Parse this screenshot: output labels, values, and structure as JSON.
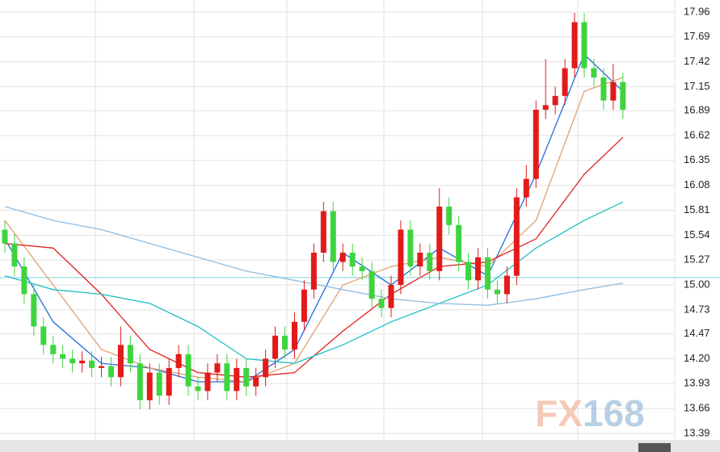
{
  "chart_data": {
    "type": "candlestick",
    "ylim": [
      13.32,
      18.09
    ],
    "yticks": [
      17.96,
      17.69,
      17.42,
      17.15,
      16.89,
      16.62,
      16.35,
      16.08,
      15.81,
      15.54,
      15.27,
      {
        "value": 15,
        "label": "15.00"
      },
      14.73,
      14.47,
      {
        "value": 14.2,
        "label": "14.20"
      },
      13.93,
      13.66,
      13.39
    ],
    "grid": true,
    "ref_line": 15.08,
    "up_color": "#e21a1a",
    "down_color": "#3fd43f",
    "open": [
      15.6,
      15.45,
      15.2,
      14.9,
      14.55,
      14.35,
      14.25,
      14.2,
      14.15,
      14.18,
      14.1,
      14.12,
      14.0,
      14.35,
      14.15,
      13.75,
      14.05,
      13.8,
      14.1,
      14.25,
      13.9,
      13.85,
      14.05,
      14.15,
      13.85,
      14.1,
      13.9,
      14.0,
      14.2,
      14.45,
      14.3,
      14.6,
      14.95,
      15.35,
      15.8,
      15.25,
      15.35,
      15.2,
      15.15,
      14.85,
      14.75,
      15.0,
      15.6,
      15.2,
      15.35,
      15.15,
      15.85,
      15.65,
      15.25,
      15.05,
      15.3,
      14.95,
      14.9,
      15.1,
      15.95,
      16.15,
      16.9,
      16.95,
      17.05,
      17.35,
      17.85,
      17.35,
      17.25,
      17.0,
      17.2
    ],
    "high": [
      15.7,
      15.55,
      15.3,
      15.0,
      14.65,
      14.45,
      14.35,
      14.3,
      14.28,
      14.28,
      14.22,
      14.22,
      14.55,
      14.45,
      14.25,
      14.15,
      14.15,
      14.2,
      14.35,
      14.35,
      14.0,
      14.15,
      14.25,
      14.25,
      14.2,
      14.2,
      14.1,
      14.3,
      14.55,
      14.55,
      14.7,
      15.05,
      15.45,
      15.9,
      15.9,
      15.45,
      15.45,
      15.3,
      15.25,
      14.95,
      15.1,
      15.7,
      15.7,
      15.45,
      15.45,
      16.05,
      15.95,
      15.75,
      15.35,
      15.4,
      15.4,
      15.05,
      15.2,
      16.05,
      16.3,
      17.0,
      17.45,
      17.15,
      17.45,
      17.95,
      17.95,
      17.45,
      17.35,
      17.4,
      17.3
    ],
    "low": [
      15.35,
      15.1,
      14.8,
      14.45,
      14.25,
      14.15,
      14.1,
      14.05,
      14.05,
      14.0,
      14.0,
      13.9,
      13.9,
      14.05,
      13.65,
      13.65,
      13.7,
      13.7,
      14.0,
      13.8,
      13.75,
      13.75,
      13.95,
      13.75,
      13.75,
      13.8,
      13.8,
      13.9,
      14.1,
      14.2,
      14.2,
      14.5,
      14.85,
      15.25,
      15.15,
      15.15,
      15.1,
      15.05,
      14.75,
      14.65,
      14.65,
      14.9,
      15.1,
      15.1,
      15.05,
      15.05,
      15.55,
      15.15,
      14.95,
      14.95,
      14.85,
      14.8,
      14.8,
      15.0,
      15.85,
      16.05,
      16.8,
      16.85,
      16.95,
      17.25,
      17.25,
      17.15,
      16.9,
      16.9,
      16.8
    ],
    "close": [
      15.45,
      15.2,
      14.9,
      14.55,
      14.35,
      14.25,
      14.2,
      14.15,
      14.18,
      14.1,
      14.12,
      14.0,
      14.35,
      14.15,
      13.75,
      14.05,
      13.8,
      14.1,
      14.25,
      13.9,
      13.85,
      14.05,
      14.15,
      13.85,
      14.1,
      13.9,
      14.0,
      14.2,
      14.45,
      14.3,
      14.6,
      14.95,
      15.35,
      15.8,
      15.25,
      15.35,
      15.2,
      15.15,
      14.85,
      14.75,
      15.0,
      15.6,
      15.2,
      15.35,
      15.15,
      15.85,
      15.65,
      15.25,
      15.05,
      15.3,
      14.95,
      14.9,
      15.1,
      15.95,
      16.15,
      16.9,
      16.95,
      17.05,
      17.35,
      17.85,
      17.35,
      17.25,
      17.0,
      17.2,
      16.9
    ],
    "lines": [
      {
        "color": "#1e6fd9",
        "x": [
          0,
          5,
          10,
          15,
          20,
          25,
          30,
          35,
          40,
          45,
          50,
          55,
          60,
          64
        ],
        "values": [
          15.5,
          14.6,
          14.15,
          14.1,
          13.95,
          13.95,
          14.3,
          15.35,
          15.0,
          15.4,
          15.1,
          16.2,
          17.5,
          17.1
        ]
      },
      {
        "color": "#e0a070",
        "x": [
          0,
          5,
          10,
          15,
          20,
          25,
          30,
          35,
          40,
          45,
          50,
          55,
          60,
          64
        ],
        "values": [
          15.7,
          15.0,
          14.3,
          14.1,
          14.0,
          13.95,
          14.15,
          15.0,
          15.2,
          15.3,
          15.2,
          15.7,
          17.1,
          17.25
        ]
      },
      {
        "color": "#e02020",
        "x": [
          0,
          5,
          10,
          15,
          20,
          25,
          30,
          35,
          40,
          45,
          50,
          55,
          60,
          64
        ],
        "values": [
          15.45,
          15.4,
          14.9,
          14.3,
          14.05,
          14.0,
          14.05,
          14.5,
          14.9,
          15.2,
          15.25,
          15.5,
          16.2,
          16.6
        ]
      },
      {
        "color": "#20c0c0",
        "x": [
          0,
          5,
          10,
          15,
          20,
          25,
          30,
          35,
          40,
          45,
          50,
          55,
          60,
          64
        ],
        "values": [
          15.1,
          14.95,
          14.9,
          14.8,
          14.55,
          14.2,
          14.15,
          14.35,
          14.6,
          14.8,
          15.0,
          15.4,
          15.7,
          15.9
        ]
      },
      {
        "color": "#90bce0",
        "x": [
          0,
          5,
          10,
          15,
          20,
          25,
          30,
          35,
          40,
          45,
          50,
          55,
          60,
          64
        ],
        "values": [
          15.85,
          15.7,
          15.6,
          15.45,
          15.3,
          15.15,
          15.05,
          14.95,
          14.85,
          14.8,
          14.78,
          14.85,
          14.95,
          15.02
        ]
      }
    ],
    "watermark": {
      "prefix": "FX",
      "suffix": "168"
    }
  }
}
